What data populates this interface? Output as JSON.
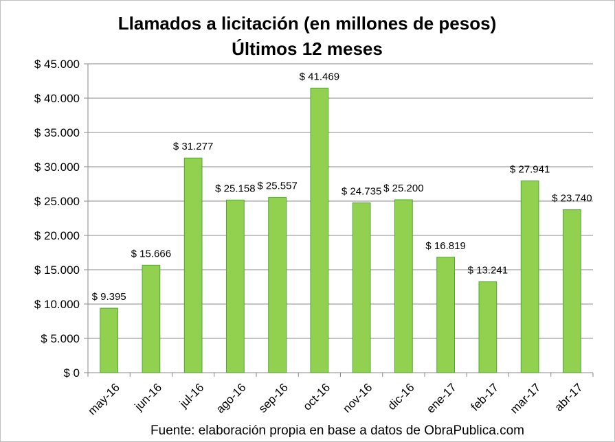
{
  "chart_data": {
    "type": "bar",
    "title": "Llamados a licitación (en millones de pesos)",
    "subtitle": "Últimos 12 meses",
    "categories": [
      "may-16",
      "jun-16",
      "jul-16",
      "ago-16",
      "sep-16",
      "oct-16",
      "nov-16",
      "dic-16",
      "ene-17",
      "feb-17",
      "mar-17",
      "abr-17"
    ],
    "values": [
      9395,
      15666,
      31277,
      25158,
      25557,
      41469,
      24735,
      25200,
      16819,
      13241,
      27941,
      23740
    ],
    "data_labels": [
      "$ 9.395",
      "$ 15.666",
      "$ 31.277",
      "$ 25.158",
      "$ 25.557",
      "$ 41.469",
      "$ 24.735",
      "$ 25.200",
      "$ 16.819",
      "$ 13.241",
      "$ 27.941",
      "$ 23.740"
    ],
    "y_ticks": [
      0,
      5000,
      10000,
      15000,
      20000,
      25000,
      30000,
      35000,
      40000,
      45000
    ],
    "y_tick_labels": [
      "$ 0",
      "$ 5.000",
      "$ 10.000",
      "$ 15.000",
      "$ 20.000",
      "$ 25.000",
      "$ 30.000",
      "$ 35.000",
      "$ 40.000",
      "$ 45.000"
    ],
    "ylim": [
      0,
      45000
    ],
    "xlabel": "",
    "ylabel": "",
    "grid": true,
    "legend": "none",
    "bar_color": "#92d050",
    "bar_border_color": "#4ea72e",
    "grid_color": "#888888"
  },
  "footer": "Fuente: elaboración propia en base a datos de ObraPublica.com"
}
